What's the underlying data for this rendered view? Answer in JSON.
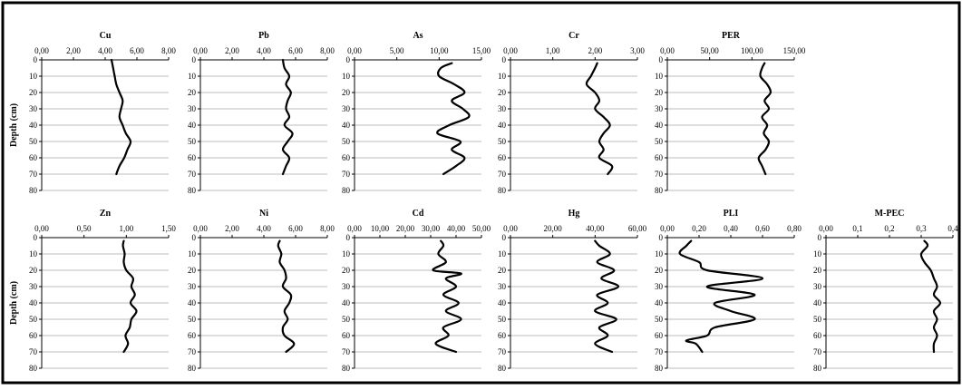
{
  "chart_data": [
    {
      "type": "line",
      "title": "Cu",
      "ylabel": "Depth (cm)",
      "xlim": [
        0,
        8
      ],
      "x_ticks": [
        "0,00",
        "2,00",
        "4,00",
        "6,00",
        "8,00"
      ],
      "y_ticks": [
        "0",
        "10",
        "20",
        "30",
        "40",
        "50",
        "60",
        "70",
        "80"
      ],
      "ylim": [
        0,
        80
      ],
      "series": [
        {
          "depth": [
            0,
            5,
            10,
            15,
            20,
            25,
            30,
            35,
            40,
            45,
            50,
            55,
            60,
            65,
            70
          ],
          "values": [
            4.4,
            4.5,
            4.6,
            4.7,
            4.9,
            5.1,
            5.0,
            4.9,
            5.1,
            5.3,
            5.6,
            5.4,
            5.2,
            4.9,
            4.7
          ]
        }
      ]
    },
    {
      "type": "line",
      "title": "Pb",
      "ylabel": "",
      "xlim": [
        0,
        8
      ],
      "x_ticks": [
        "0,00",
        "2,00",
        "4,00",
        "6,00",
        "8,00"
      ],
      "y_ticks": [
        "0",
        "10",
        "20",
        "30",
        "40",
        "50",
        "60",
        "70",
        "80"
      ],
      "ylim": [
        0,
        80
      ],
      "series": [
        {
          "depth": [
            0,
            5,
            10,
            15,
            20,
            25,
            30,
            35,
            40,
            45,
            50,
            55,
            60,
            65,
            70
          ],
          "values": [
            5.2,
            5.3,
            5.6,
            5.4,
            5.7,
            5.5,
            5.4,
            5.6,
            5.3,
            5.8,
            5.5,
            5.2,
            5.6,
            5.4,
            5.2
          ]
        }
      ]
    },
    {
      "type": "line",
      "title": "As",
      "ylabel": "",
      "xlim": [
        0,
        15
      ],
      "x_ticks": [
        "0,00",
        "5,00",
        "10,00",
        "15,00"
      ],
      "y_ticks": [
        "0",
        "10",
        "20",
        "30",
        "40",
        "50",
        "60",
        "70",
        "80"
      ],
      "ylim": [
        0,
        80
      ],
      "series": [
        {
          "depth": [
            2,
            5,
            10,
            15,
            20,
            25,
            30,
            35,
            40,
            45,
            50,
            55,
            60,
            65,
            70
          ],
          "values": [
            11.5,
            10.2,
            10.0,
            11.8,
            13.0,
            11.5,
            12.8,
            13.5,
            11.2,
            9.8,
            12.5,
            11.5,
            13.0,
            12.0,
            10.5
          ]
        }
      ]
    },
    {
      "type": "line",
      "title": "Cr",
      "ylabel": "",
      "xlim": [
        0,
        3
      ],
      "x_ticks": [
        "0,00",
        "1,00",
        "2,00",
        "3,00"
      ],
      "y_ticks": [
        "0",
        "10",
        "20",
        "30",
        "40",
        "50",
        "60",
        "70",
        "80"
      ],
      "ylim": [
        0,
        80
      ],
      "series": [
        {
          "depth": [
            2,
            5,
            10,
            15,
            20,
            25,
            30,
            35,
            40,
            45,
            50,
            55,
            60,
            65,
            70
          ],
          "values": [
            2.05,
            2.0,
            1.9,
            1.8,
            2.0,
            2.1,
            2.0,
            2.2,
            2.35,
            2.2,
            2.1,
            2.2,
            2.1,
            2.4,
            2.3
          ]
        }
      ]
    },
    {
      "type": "line",
      "title": "PER",
      "ylabel": "",
      "xlim": [
        0,
        150
      ],
      "x_ticks": [
        "0,00",
        "50,00",
        "100,00",
        "150,00"
      ],
      "y_ticks": [
        "0",
        "10",
        "20",
        "30",
        "40",
        "50",
        "60",
        "70",
        "80"
      ],
      "ylim": [
        0,
        80
      ],
      "series": [
        {
          "depth": [
            2,
            5,
            10,
            15,
            20,
            25,
            30,
            35,
            40,
            45,
            50,
            55,
            60,
            65,
            70
          ],
          "values": [
            115,
            112,
            110,
            118,
            122,
            115,
            120,
            112,
            118,
            114,
            120,
            116,
            108,
            112,
            116
          ]
        }
      ]
    },
    {
      "type": "line",
      "title": "Zn",
      "ylabel": "Depth (cm)",
      "xlim": [
        0,
        1.5
      ],
      "x_ticks": [
        "0,00",
        "0,50",
        "1,00",
        "1,50"
      ],
      "y_ticks": [
        "0",
        "10",
        "20",
        "30",
        "40",
        "50",
        "60",
        "70",
        "80"
      ],
      "ylim": [
        0,
        80
      ],
      "series": [
        {
          "depth": [
            2,
            5,
            10,
            15,
            20,
            25,
            30,
            35,
            40,
            45,
            50,
            55,
            60,
            65,
            70
          ],
          "values": [
            0.97,
            0.96,
            0.98,
            0.97,
            1.0,
            1.08,
            1.06,
            1.1,
            1.05,
            1.12,
            1.06,
            1.04,
            0.99,
            1.02,
            0.97
          ]
        }
      ]
    },
    {
      "type": "line",
      "title": "Ni",
      "ylabel": "",
      "xlim": [
        0,
        8
      ],
      "x_ticks": [
        "0,00",
        "2,00",
        "4,00",
        "6,00",
        "8,00"
      ],
      "y_ticks": [
        "0",
        "10",
        "20",
        "30",
        "40",
        "50",
        "60",
        "70",
        "80"
      ],
      "ylim": [
        0,
        80
      ],
      "series": [
        {
          "depth": [
            2,
            5,
            10,
            15,
            20,
            25,
            30,
            35,
            40,
            45,
            50,
            55,
            60,
            65,
            70
          ],
          "values": [
            5.0,
            4.9,
            5.1,
            5.0,
            5.3,
            5.4,
            5.2,
            5.7,
            5.6,
            5.3,
            5.5,
            5.2,
            5.3,
            5.9,
            5.4
          ]
        }
      ]
    },
    {
      "type": "line",
      "title": "Cd",
      "ylabel": "",
      "xlim": [
        0,
        50
      ],
      "x_ticks": [
        "0,00",
        "10,00",
        "20,00",
        "30,00",
        "40,00",
        "50,00"
      ],
      "y_ticks": [
        "0",
        "10",
        "20",
        "30",
        "40",
        "50",
        "60",
        "70",
        "80"
      ],
      "ylim": [
        0,
        80
      ],
      "series": [
        {
          "depth": [
            2,
            5,
            10,
            15,
            20,
            22,
            25,
            30,
            35,
            40,
            45,
            50,
            55,
            60,
            65,
            70
          ],
          "values": [
            34,
            35,
            33,
            36,
            31,
            42,
            36,
            40,
            35,
            41,
            36,
            42,
            35,
            37,
            32,
            40
          ]
        }
      ]
    },
    {
      "type": "line",
      "title": "Hg",
      "ylabel": "",
      "xlim": [
        0,
        60
      ],
      "x_ticks": [
        "0,00",
        "20,00",
        "40,00",
        "60,00"
      ],
      "y_ticks": [
        "0",
        "10",
        "20",
        "30",
        "40",
        "50",
        "60",
        "70",
        "80"
      ],
      "ylim": [
        0,
        80
      ],
      "series": [
        {
          "depth": [
            2,
            5,
            10,
            15,
            20,
            25,
            30,
            35,
            40,
            45,
            50,
            55,
            60,
            65,
            70
          ],
          "values": [
            40,
            42,
            47,
            41,
            49,
            43,
            51,
            41,
            46,
            40,
            50,
            42,
            46,
            40,
            48
          ]
        }
      ]
    },
    {
      "type": "line",
      "title": "PLI",
      "ylabel": "",
      "xlim": [
        0,
        0.8
      ],
      "x_ticks": [
        "0,00",
        "0,20",
        "0,40",
        "0,60",
        "0,80"
      ],
      "y_ticks": [
        "0",
        "10",
        "20",
        "30",
        "40",
        "50",
        "60",
        "70",
        "80"
      ],
      "ylim": [
        0,
        80
      ],
      "series": [
        {
          "depth": [
            2,
            5,
            10,
            15,
            20,
            25,
            30,
            35,
            40,
            45,
            50,
            55,
            60,
            63,
            65,
            70
          ],
          "values": [
            0.15,
            0.12,
            0.08,
            0.2,
            0.25,
            0.6,
            0.25,
            0.55,
            0.3,
            0.4,
            0.55,
            0.3,
            0.25,
            0.12,
            0.18,
            0.22
          ]
        }
      ]
    },
    {
      "type": "line",
      "title": "M-PEC",
      "ylabel": "",
      "xlim": [
        0,
        0.4
      ],
      "x_ticks": [
        "0,00",
        "0,1",
        "0,2",
        "0,3",
        "0,4"
      ],
      "y_ticks": [
        "0",
        "10",
        "20",
        "30",
        "40",
        "50",
        "60",
        "70",
        "80"
      ],
      "ylim": [
        0,
        80
      ],
      "series": [
        {
          "depth": [
            2,
            5,
            10,
            15,
            20,
            25,
            30,
            35,
            40,
            45,
            50,
            55,
            60,
            65,
            70
          ],
          "values": [
            0.31,
            0.32,
            0.3,
            0.31,
            0.33,
            0.34,
            0.35,
            0.34,
            0.36,
            0.34,
            0.35,
            0.34,
            0.35,
            0.34,
            0.34
          ]
        }
      ]
    }
  ]
}
